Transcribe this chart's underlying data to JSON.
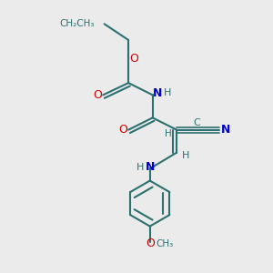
{
  "bg_color": "#ebebeb",
  "bond_color": "#2d7070",
  "bond_width": 1.5,
  "o_color": "#cc0000",
  "n_color": "#0000cc",
  "c_color": "#2d7070",
  "fig_width": 3.0,
  "fig_height": 3.0,
  "dpi": 100,
  "xlim": [
    0,
    10
  ],
  "ylim": [
    0,
    10
  ]
}
